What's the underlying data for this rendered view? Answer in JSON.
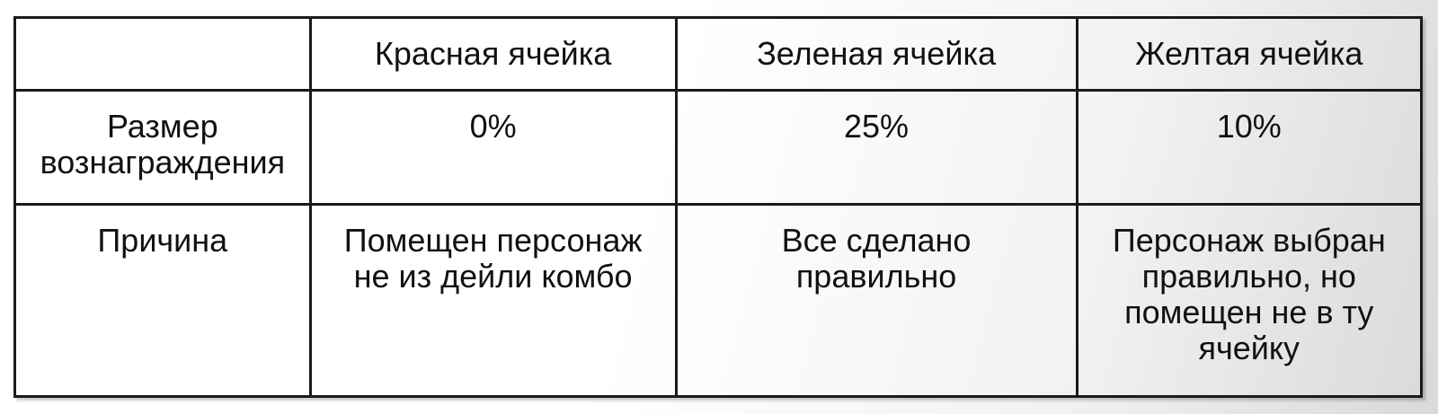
{
  "background": {
    "base_color": "#ffffff",
    "edge_color": "#d9d9d9"
  },
  "table": {
    "border_color": "#1a1a1a",
    "text_color": "#111111",
    "header": {
      "corner": "",
      "columns": [
        {
          "label": "Красная ячейка"
        },
        {
          "label": "Зеленая ячейка"
        },
        {
          "label": "Желтая ячейка"
        }
      ]
    },
    "rows": [
      {
        "label": "Размер\nвознаграждения",
        "values": [
          "0%",
          "25%",
          "10%"
        ]
      },
      {
        "label": "Причина",
        "values": [
          "Помещен персонаж\nне из дейли комбо",
          "Все сделано\nправильно",
          "Персонаж выбран\nправильно, но\nпомещен не в ту\nячейку"
        ]
      }
    ]
  }
}
